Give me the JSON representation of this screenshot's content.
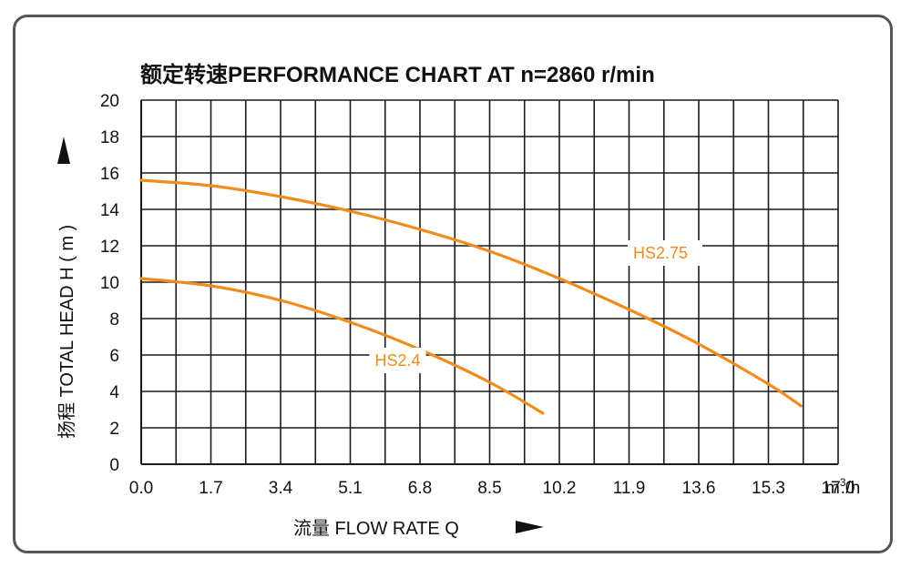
{
  "chart_data": {
    "type": "line",
    "title": "额定转速PERFORMANCE CHART AT  n=2860 r/min",
    "xlabel": "流量 FLOW RATE  Q",
    "ylabel": "扬程 TOTAL HEAD  H ( m )",
    "x_unit": "m³/h",
    "x_unit_base": "m",
    "x_unit_sup": "3",
    "x_unit_tail": "/h",
    "xlim": [
      0,
      17.0
    ],
    "ylim": [
      0,
      20
    ],
    "xticks": [
      "0.0",
      "1.7",
      "3.4",
      "5.1",
      "6.8",
      "8.5",
      "10.2",
      "11.9",
      "13.6",
      "15.3",
      "17.0"
    ],
    "yticks": [
      "0",
      "2",
      "4",
      "6",
      "8",
      "10",
      "12",
      "14",
      "16",
      "18",
      "20"
    ],
    "grid": true,
    "curve_color": "#f08c1e",
    "label_color": "#f08c1e",
    "series": [
      {
        "name": "HS2.75",
        "x": [
          0.0,
          1.7,
          3.4,
          5.1,
          6.8,
          8.5,
          10.2,
          11.9,
          13.6,
          15.3,
          16.1
        ],
        "y": [
          15.6,
          15.3,
          14.7,
          13.9,
          12.9,
          11.7,
          10.2,
          8.5,
          6.6,
          4.4,
          3.2
        ]
      },
      {
        "name": "HS2.4",
        "x": [
          0.0,
          1.7,
          3.4,
          5.1,
          6.8,
          8.5,
          9.8
        ],
        "y": [
          10.2,
          9.8,
          9.0,
          7.8,
          6.3,
          4.5,
          2.8
        ]
      }
    ]
  }
}
